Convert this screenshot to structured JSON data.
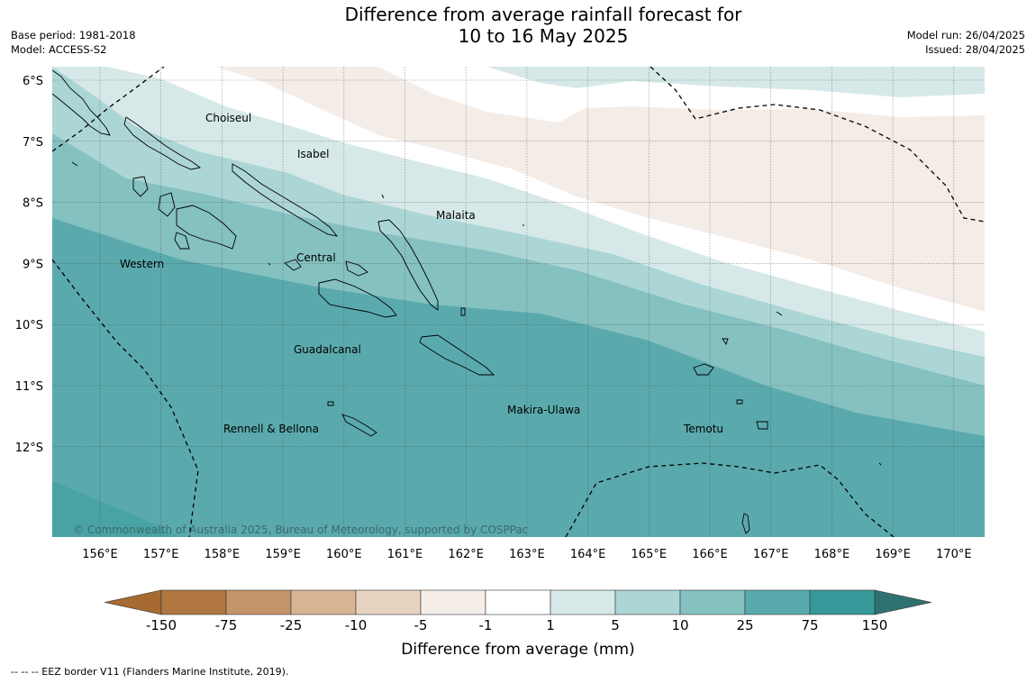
{
  "title": {
    "line1": "Difference from average rainfall forecast for",
    "line2": "10 to 16 May 2025"
  },
  "meta_left": {
    "base_period": "Base period: 1981-2018",
    "model": "Model: ACCESS-S2"
  },
  "meta_right": {
    "model_run": "Model run: 26/04/2025",
    "issued": "Issued: 28/04/2025"
  },
  "map": {
    "lat_labels": [
      "6°S",
      "7°S",
      "8°S",
      "9°S",
      "10°S",
      "11°S",
      "12°S"
    ],
    "lon_labels": [
      "156°E",
      "157°E",
      "158°E",
      "159°E",
      "160°E",
      "161°E",
      "162°E",
      "163°E",
      "164°E",
      "165°E",
      "166°E",
      "167°E",
      "168°E",
      "169°E",
      "170°E"
    ],
    "regions": [
      "Choiseul",
      "Isabel",
      "Malaita",
      "Western",
      "Central",
      "Guadalcanal",
      "Makira-Ulawa",
      "Rennell & Bellona",
      "Temotu"
    ],
    "copyright": "© Commonwealth of Australia 2025, Bureau of Meteorology, supported by COSPPac"
  },
  "colorbar": {
    "title": "Difference from average (mm)",
    "tick_labels": [
      "-150",
      "-75",
      "-25",
      "-10",
      "-5",
      "-1",
      "1",
      "5",
      "10",
      "25",
      "75",
      "150"
    ],
    "colors": [
      "#a66a32",
      "#b07840",
      "#c49468",
      "#d7b494",
      "#e6d3c0",
      "#f5ede8",
      "#ffffff",
      "#d6e9e8",
      "#acd6d5",
      "#84c1c0",
      "#5aaaad",
      "#35999a",
      "#2f7170"
    ]
  },
  "footer": {
    "eez_note": "--  --  -- EEZ border V11 (Flanders Marine Institute, 2019)."
  }
}
